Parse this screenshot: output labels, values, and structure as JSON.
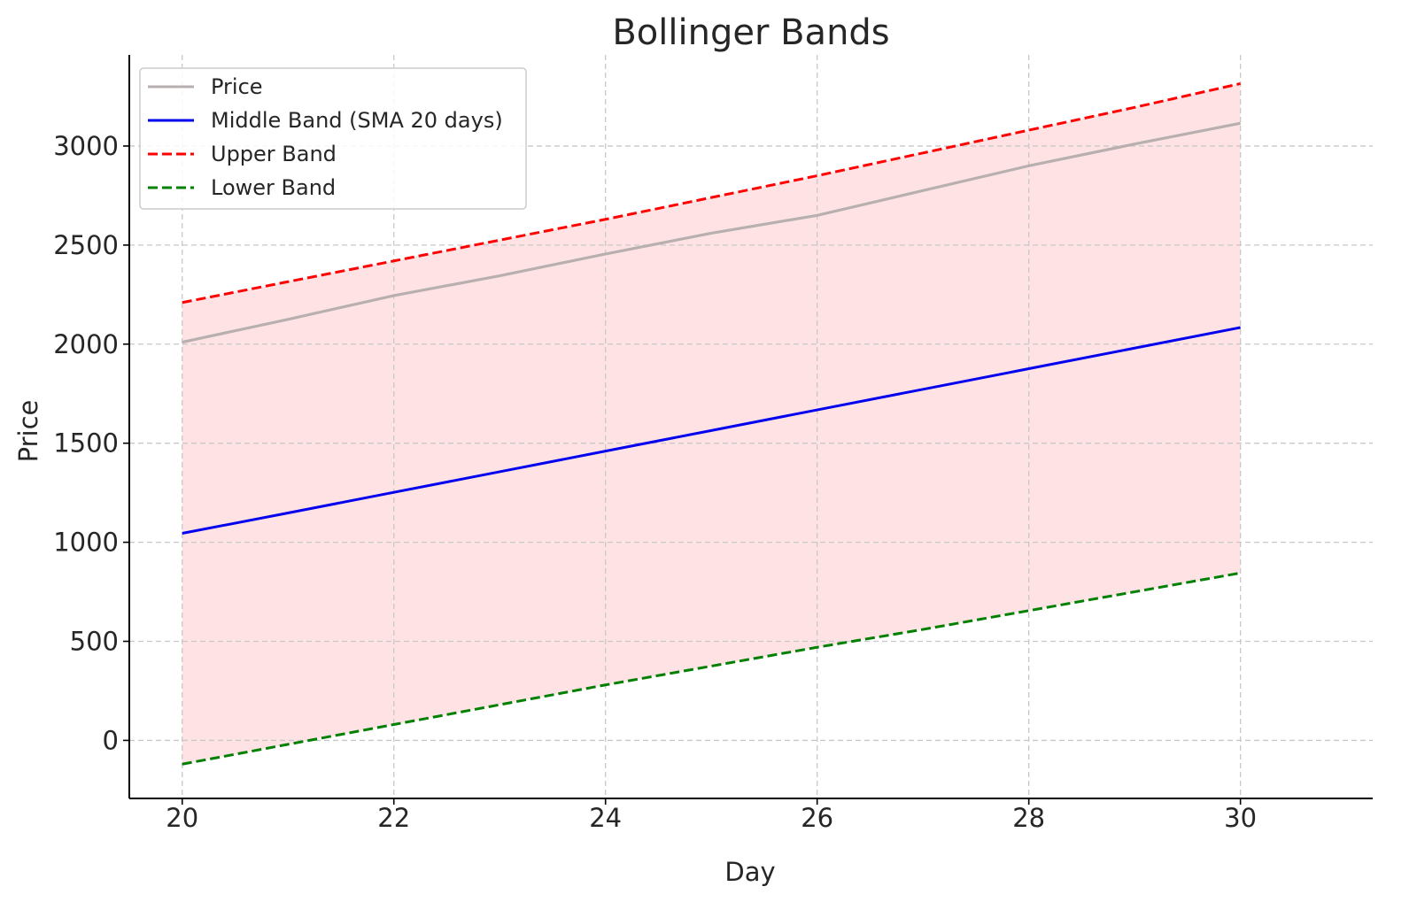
{
  "chart_data": {
    "type": "line",
    "title": "Bollinger Bands",
    "xlabel": "Day",
    "ylabel": "Price",
    "xlim": [
      19.5,
      31.25
    ],
    "ylim": [
      -293,
      3460
    ],
    "xticks": [
      20,
      22,
      24,
      26,
      28,
      30
    ],
    "xtick_labels": [
      "20",
      "22",
      "24",
      "26",
      "28",
      "30"
    ],
    "yticks": [
      0,
      500,
      1000,
      1500,
      2000,
      2500,
      3000
    ],
    "ytick_labels": [
      "0",
      "500",
      "1000",
      "1500",
      "2000",
      "2500",
      "3000"
    ],
    "grid": true,
    "legend_position": "upper-left",
    "x": [
      20,
      21,
      22,
      23,
      24,
      25,
      26,
      27,
      28,
      29,
      30
    ],
    "series": [
      {
        "name": "Price",
        "color": "#b8b0b0",
        "style": "solid",
        "values": [
          2010,
          2125,
          2245,
          2345,
          2455,
          2560,
          2650,
          2775,
          2900,
          3010,
          3115
        ]
      },
      {
        "name": "Middle Band (SMA 20 days)",
        "color": "#0000ee",
        "style": "solid",
        "values": [
          1045,
          1148,
          1252,
          1356,
          1460,
          1564,
          1668,
          1772,
          1876,
          1980,
          2084
        ]
      },
      {
        "name": "Upper Band",
        "color": "#ff0000",
        "style": "dashed",
        "values": [
          2210,
          2315,
          2420,
          2525,
          2630,
          2740,
          2850,
          2965,
          3080,
          3195,
          3315
        ]
      },
      {
        "name": "Lower Band",
        "color": "#008000",
        "style": "dashed",
        "values": [
          -120,
          -20,
          80,
          180,
          280,
          375,
          470,
          560,
          655,
          750,
          845
        ]
      }
    ],
    "band_fill": {
      "between": [
        "Upper Band",
        "Lower Band"
      ],
      "color": "#ffe3e4"
    }
  }
}
